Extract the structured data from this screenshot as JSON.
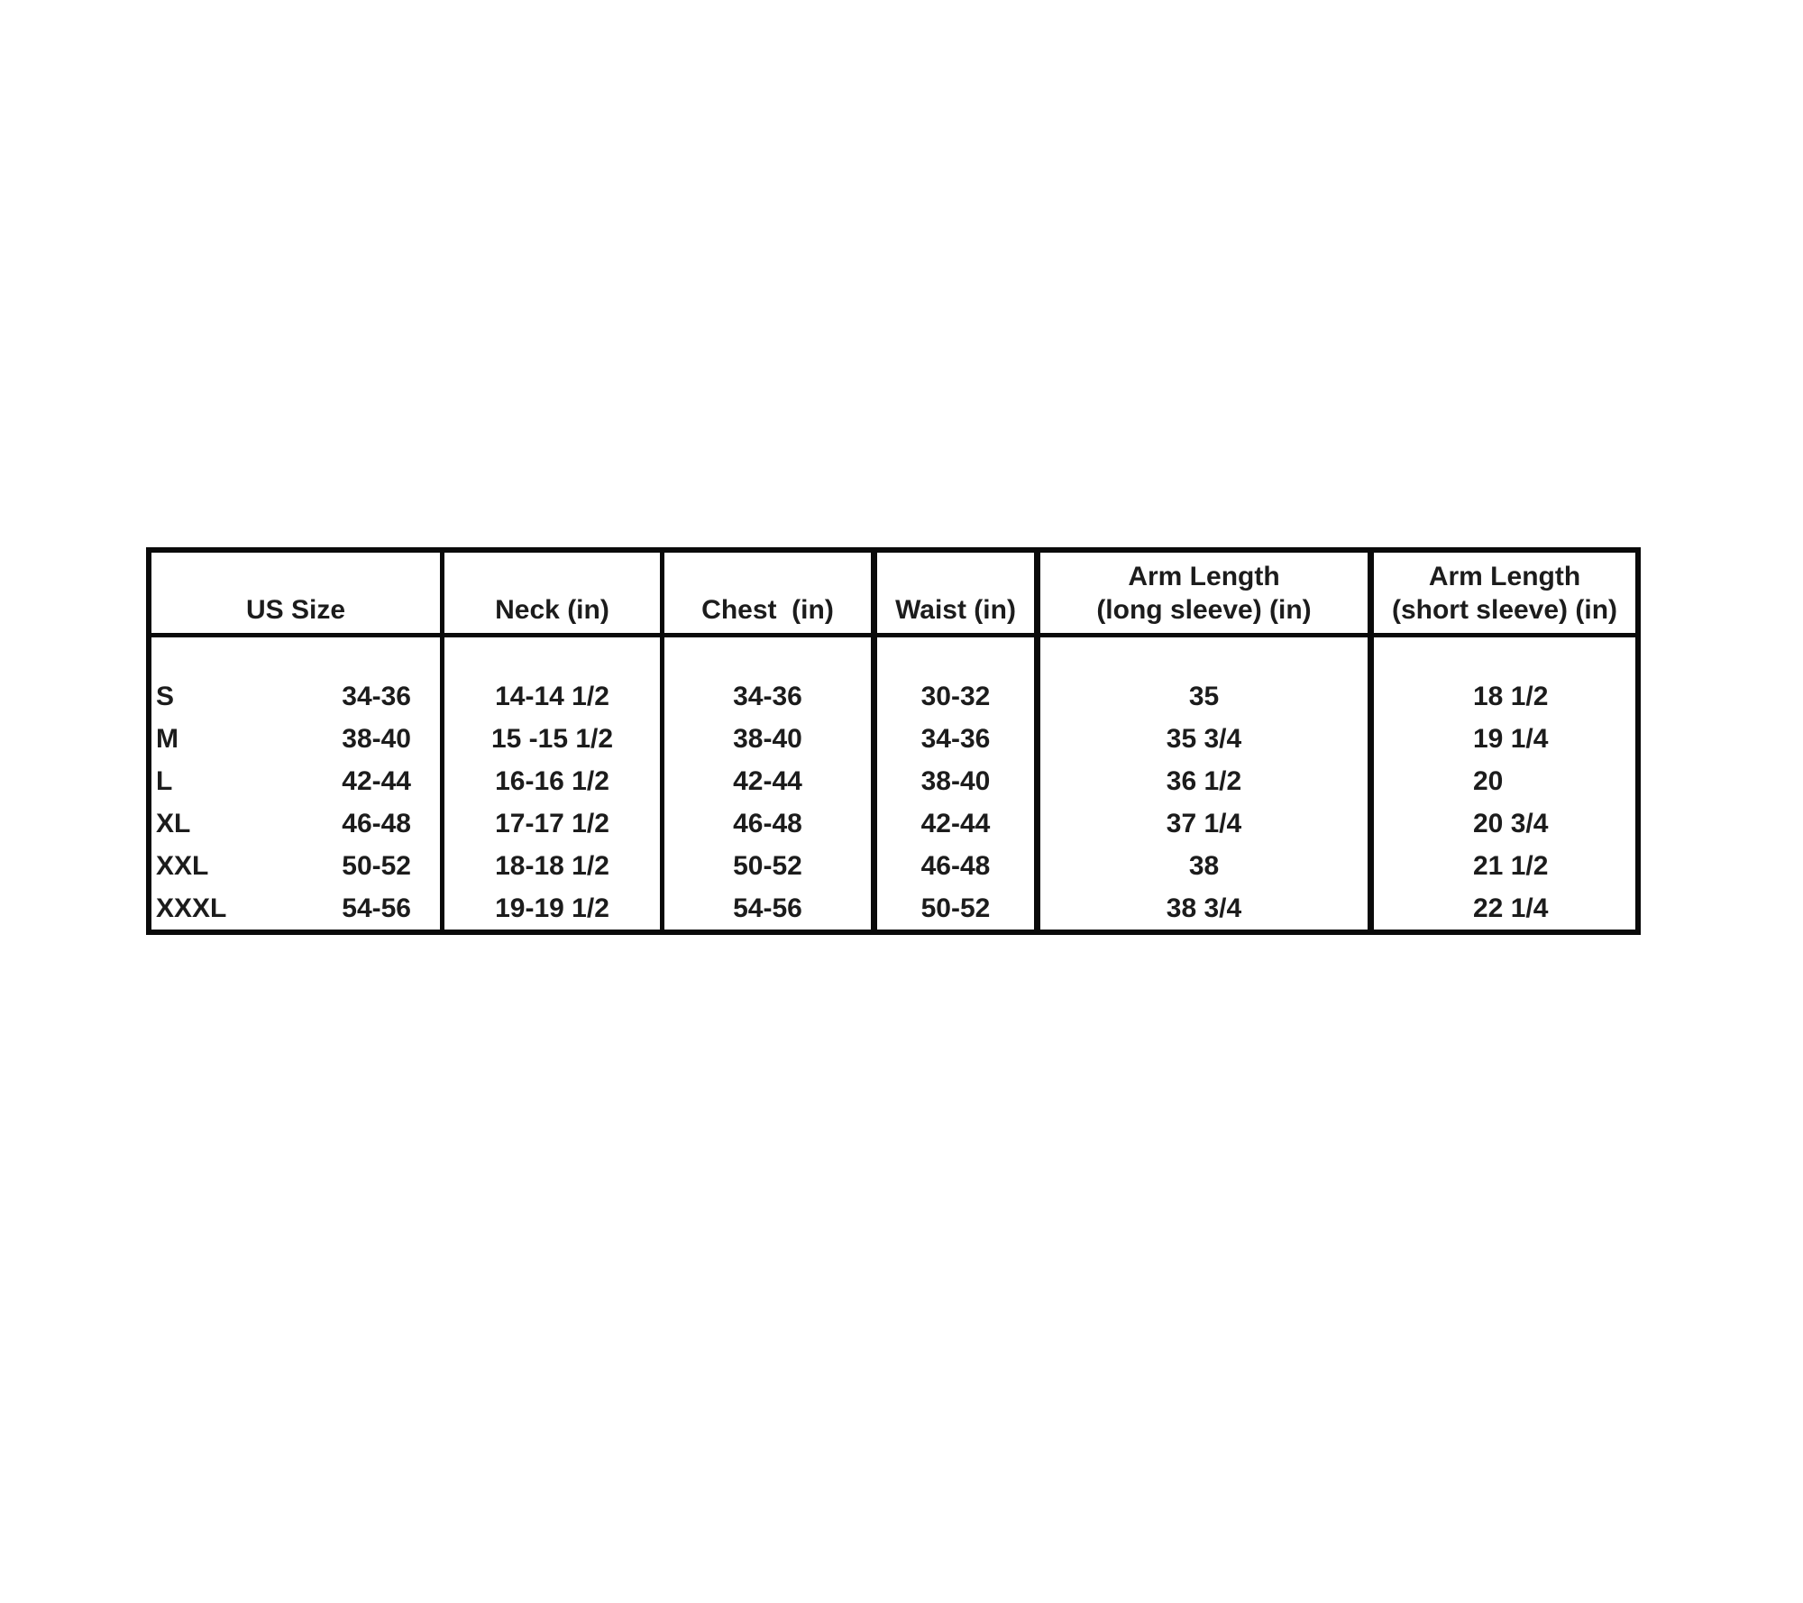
{
  "table": {
    "title": "size-chart",
    "border_color": "#0a0a0a",
    "text_color": "#1c1c1c",
    "headers": {
      "us_size": "US Size",
      "neck": "Neck (in)",
      "chest": "Chest  (in)",
      "waist": "Waist (in)",
      "arm_long_line1": "Arm Length",
      "arm_long_line2": "(long sleeve) (in)",
      "arm_short_line1": "Arm Length",
      "arm_short_line2": "(short sleeve) (in)"
    },
    "rows": [
      {
        "size": "S",
        "us_size": "34-36",
        "neck": "14-14 1/2",
        "chest": "34-36",
        "waist": "30-32",
        "arm_long": "35",
        "arm_short": "18 1/2"
      },
      {
        "size": "M",
        "us_size": "38-40",
        "neck": "15 -15 1/2",
        "chest": "38-40",
        "waist": "34-36",
        "arm_long": "35 3/4",
        "arm_short": "19 1/4"
      },
      {
        "size": "L",
        "us_size": "42-44",
        "neck": "16-16 1/2",
        "chest": "42-44",
        "waist": "38-40",
        "arm_long": "36 1/2",
        "arm_short": "20"
      },
      {
        "size": "XL",
        "us_size": "46-48",
        "neck": "17-17 1/2",
        "chest": "46-48",
        "waist": "42-44",
        "arm_long": "37 1/4",
        "arm_short": "20 3/4"
      },
      {
        "size": "XXL",
        "us_size": "50-52",
        "neck": "18-18 1/2",
        "chest": "50-52",
        "waist": "46-48",
        "arm_long": "38",
        "arm_short": "21 1/2"
      },
      {
        "size": "XXXL",
        "us_size": "54-56",
        "neck": "19-19 1/2",
        "chest": "54-56",
        "waist": "50-52",
        "arm_long": "38 3/4",
        "arm_short": "22 1/4"
      }
    ]
  }
}
